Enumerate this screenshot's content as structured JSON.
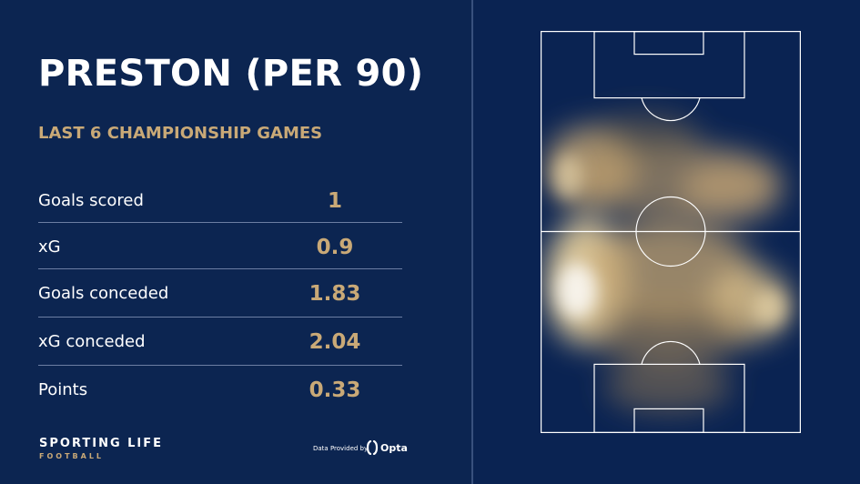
{
  "header": {
    "title": "PRESTON (PER 90)",
    "subtitle": "LAST 6 CHAMPIONSHIP GAMES"
  },
  "stats": [
    {
      "label": "Goals scored",
      "value": "1"
    },
    {
      "label": "xG",
      "value": "0.9"
    },
    {
      "label": "Goals conceded",
      "value": "1.83"
    },
    {
      "label": "xG conceded",
      "value": "2.04"
    },
    {
      "label": "Points",
      "value": "0.33"
    }
  ],
  "footer": {
    "brand": "SPORTING LIFE",
    "brand_sub": "FOOTBALL",
    "provided_by": "Data Provided by",
    "provider": "Opta"
  },
  "icons": [
    "opta-logo-icon"
  ],
  "colors": {
    "background": "#0c2551",
    "accent_gold": "#c9a977",
    "text": "#ffffff",
    "pitch_lines": "#ffffff"
  }
}
